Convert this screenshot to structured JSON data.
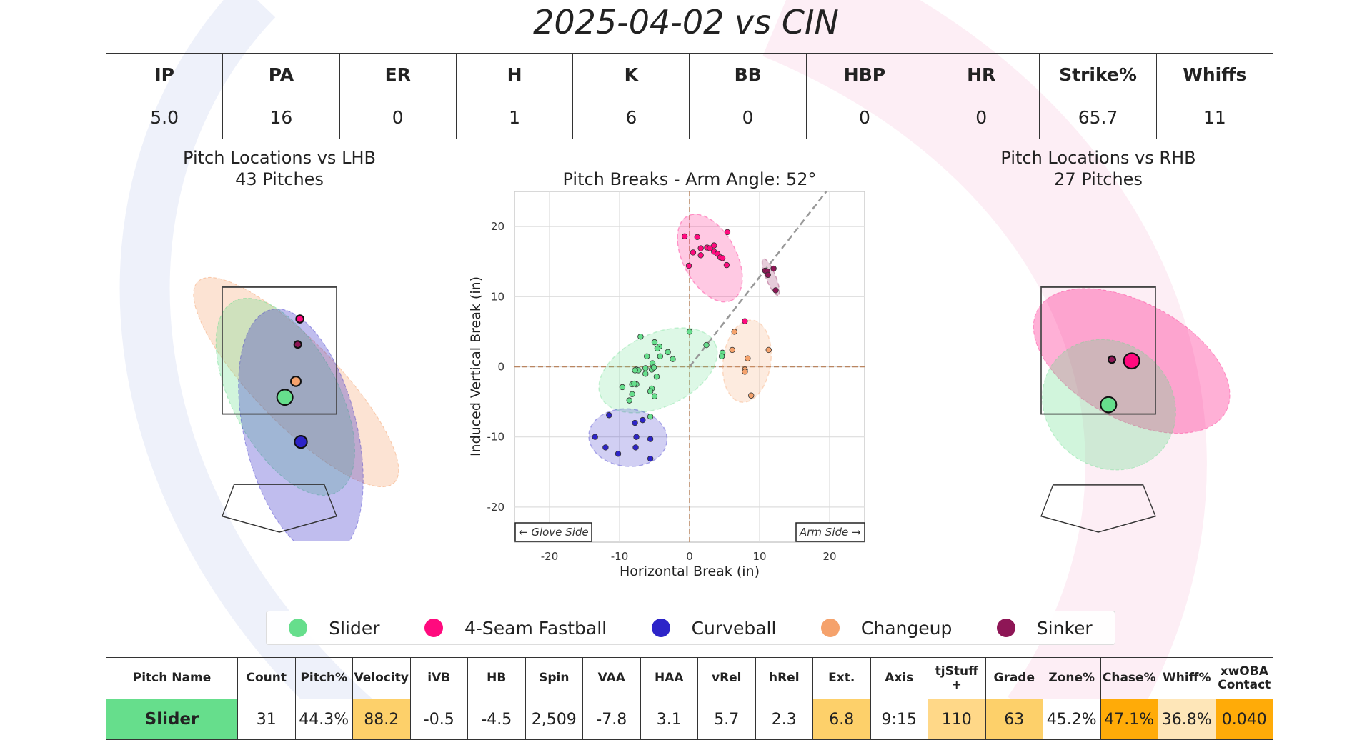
{
  "title": "2025-04-02 vs CIN",
  "colors": {
    "Slider": "#66de8c",
    "4-Seam Fastball": "#ff0a7e",
    "Curveball": "#2d24c8",
    "Changeup": "#f5a26c",
    "Sinker": "#8e1656"
  },
  "stats": {
    "headers": [
      "IP",
      "PA",
      "ER",
      "H",
      "K",
      "BB",
      "HBP",
      "HR",
      "Strike%",
      "Whiffs"
    ],
    "values": [
      "5.0",
      "16",
      "0",
      "1",
      "6",
      "0",
      "0",
      "0",
      "65.7",
      "11"
    ]
  },
  "lhb": {
    "title": "Pitch Locations vs LHB",
    "subtitle": "43 Pitches"
  },
  "rhb": {
    "title": "Pitch Locations vs RHB",
    "subtitle": "27 Pitches"
  },
  "chart_data": {
    "type": "scatter",
    "title": "Pitch Breaks - Arm Angle: 52°",
    "xlabel": "Horizontal Break (in)",
    "ylabel": "Induced Vertical Break (in)",
    "xlim": [
      -25,
      25
    ],
    "ylim": [
      -25,
      25
    ],
    "xticks": [
      "-20",
      "-10",
      "0",
      "10",
      "20"
    ],
    "yticks": [
      "20",
      "10",
      "0",
      "-10",
      "-20"
    ],
    "grid": true,
    "arm_angle_deg": 52,
    "annotations": [
      "← Glove Side",
      "Arm Side →"
    ],
    "series": [
      {
        "name": "Slider",
        "points": [
          [
            0,
            5
          ],
          [
            -7,
            4.3
          ],
          [
            -5,
            3.5
          ],
          [
            -4.3,
            2.9
          ],
          [
            -4.6,
            2.6
          ],
          [
            -3.1,
            2.1
          ],
          [
            -2.4,
            1.1
          ],
          [
            -4.2,
            1.5
          ],
          [
            -6.1,
            1.5
          ],
          [
            -5.3,
            0.5
          ],
          [
            2.4,
            3.1
          ],
          [
            4.7,
            2
          ],
          [
            4.6,
            1.5
          ],
          [
            -7.6,
            -0.4
          ],
          [
            -7.3,
            -0.5
          ],
          [
            -6.3,
            -0.2
          ],
          [
            -5.4,
            -0.4
          ],
          [
            -6.3,
            -1
          ],
          [
            -4.7,
            -1.4
          ],
          [
            -9.6,
            -2.9
          ],
          [
            -8.2,
            -2.5
          ],
          [
            -7.6,
            -2.5
          ],
          [
            -7.9,
            -2.4
          ],
          [
            -8.2,
            -3.9
          ],
          [
            -8.6,
            -4.8
          ],
          [
            -5.4,
            -3.1
          ],
          [
            -5.6,
            -3.5
          ],
          [
            -5,
            -4.2
          ],
          [
            -5.6,
            -7.1
          ],
          [
            -5.1,
            -0.1
          ],
          [
            -7.8,
            -0.5
          ]
        ],
        "ellipse": {
          "cx": -4.5,
          "cy": -0.5,
          "a": 9,
          "b": 5.2,
          "angle": 25
        }
      },
      {
        "name": "4-Seam Fastball",
        "points": [
          [
            -0.7,
            18.6
          ],
          [
            1.1,
            18.5
          ],
          [
            5.4,
            19.2
          ],
          [
            0.5,
            16.3
          ],
          [
            1.6,
            16.9
          ],
          [
            1.6,
            15.9
          ],
          [
            2.5,
            17
          ],
          [
            2.9,
            16.9
          ],
          [
            3.5,
            17.3
          ],
          [
            3.5,
            16.4
          ],
          [
            4,
            16.1
          ],
          [
            4.4,
            15.6
          ],
          [
            4.7,
            15.5
          ],
          [
            5.3,
            14.5
          ],
          [
            -0.1,
            14.4
          ],
          [
            7.9,
            6.5
          ]
        ],
        "ellipse": {
          "cx": 2.9,
          "cy": 15.5,
          "a": 6.8,
          "b": 3.8,
          "angle": -62
        }
      },
      {
        "name": "Curveball",
        "points": [
          [
            -11.5,
            -6.9
          ],
          [
            -7.8,
            -8
          ],
          [
            -6.7,
            -7.6
          ],
          [
            -13.5,
            -10
          ],
          [
            -7.6,
            -10
          ],
          [
            -5.6,
            -10.3
          ],
          [
            -12,
            -11.5
          ],
          [
            -7.7,
            -11.5
          ],
          [
            -10.2,
            -12.4
          ],
          [
            -5.6,
            -13.1
          ]
        ],
        "ellipse": {
          "cx": -8.8,
          "cy": -10.1,
          "a": 5.6,
          "b": 4.1,
          "angle": -5
        }
      },
      {
        "name": "Changeup",
        "points": [
          [
            6.4,
            5
          ],
          [
            6.1,
            2.4
          ],
          [
            8.3,
            1.2
          ],
          [
            11.3,
            2.4
          ],
          [
            7.9,
            -0.4
          ],
          [
            7.9,
            -0.7
          ],
          [
            8.8,
            -4.1
          ]
        ],
        "ellipse": {
          "cx": 8.2,
          "cy": 0.8,
          "a": 3.4,
          "b": 5.9,
          "angle": -8
        }
      },
      {
        "name": "Sinker",
        "points": [
          [
            10.8,
            13.7
          ],
          [
            11.1,
            13.6
          ],
          [
            11.2,
            13.1
          ],
          [
            12,
            14
          ],
          [
            12.3,
            10.9
          ]
        ],
        "ellipse": {
          "cx": 11.6,
          "cy": 12.8,
          "a": 2.8,
          "b": 0.7,
          "angle": -68
        }
      }
    ]
  },
  "legend": [
    "Slider",
    "4-Seam Fastball",
    "Curveball",
    "Changeup",
    "Sinker"
  ],
  "pitch_table": {
    "headers": [
      "Pitch Name",
      "Count",
      "Pitch%",
      "Velocity",
      "iVB",
      "HB",
      "Spin",
      "VAA",
      "HAA",
      "vRel",
      "hRel",
      "Ext.",
      "Axis",
      "tjStuff +",
      "Grade",
      "Zone%",
      "Chase%",
      "Whiff%",
      "xwOBA Contact"
    ],
    "rows": [
      {
        "cells": [
          "Slider",
          "31",
          "44.3%",
          "88.2",
          "-0.5",
          "-4.5",
          "2,509",
          "-7.8",
          "3.1",
          "5.7",
          "2.3",
          "6.8",
          "9:15",
          "110",
          "63",
          "45.2%",
          "47.1%",
          "36.8%",
          "0.040"
        ],
        "cell_colors": [
          "#66de8c",
          "#ffffff",
          "#ffffff",
          "#fdd06a",
          "#ffffff",
          "#ffffff",
          "#ffffff",
          "#ffffff",
          "#ffffff",
          "#ffffff",
          "#ffffff",
          "#fdd06a",
          "#ffffff",
          "#ffd888",
          "#fdd06a",
          "#ffffff",
          "#ffab08",
          "#fee6b8",
          "#ffab08"
        ]
      }
    ]
  }
}
